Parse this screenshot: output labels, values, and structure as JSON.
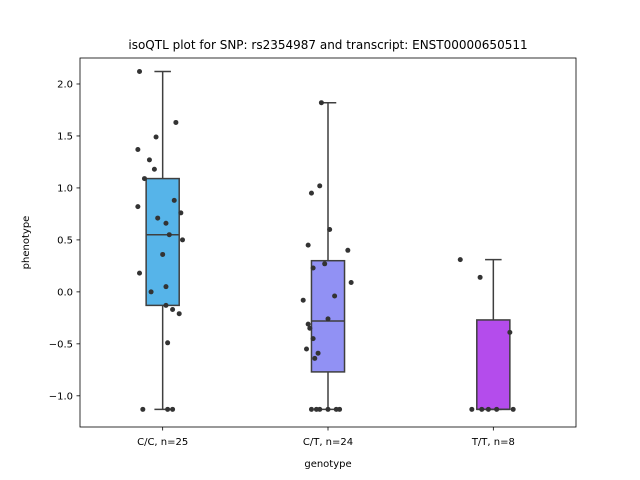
{
  "chart_data": {
    "type": "box",
    "title": "isoQTL plot for SNP: rs2354987 and transcript: ENST00000650511",
    "xlabel": "genotype",
    "ylabel": "phenotype",
    "ylim": [
      -1.3,
      2.25
    ],
    "yticks": [
      -1.0,
      -0.5,
      0.0,
      0.5,
      1.0,
      1.5,
      2.0
    ],
    "ytick_labels": [
      "−1.0",
      "−0.5",
      "0.0",
      "0.5",
      "1.0",
      "1.5",
      "2.0"
    ],
    "grid": false,
    "categories": [
      "C/C, n=25",
      "C/T, n=24",
      "T/T, n=8"
    ],
    "colors": [
      "#56b4e9",
      "#9191f4",
      "#b44cec"
    ],
    "boxes": [
      {
        "whisker_low": -1.13,
        "q1": -0.13,
        "median": 0.55,
        "q3": 1.09,
        "whisker_high": 2.12
      },
      {
        "whisker_low": -1.13,
        "q1": -0.77,
        "median": -0.28,
        "q3": 0.3,
        "whisker_high": 1.82
      },
      {
        "whisker_low": -1.13,
        "q1": -1.13,
        "median": -1.13,
        "q3": -0.27,
        "whisker_high": 0.31
      }
    ],
    "points": [
      [
        2.12,
        1.63,
        1.49,
        1.37,
        1.27,
        1.18,
        1.09,
        0.88,
        0.82,
        0.76,
        0.71,
        0.66,
        0.55,
        0.5,
        0.36,
        0.18,
        0.05,
        0.0,
        -0.13,
        -0.17,
        -0.21,
        -0.49,
        -1.13,
        -1.13,
        -1.13
      ],
      [
        1.82,
        1.02,
        0.95,
        0.6,
        0.45,
        0.4,
        0.27,
        0.23,
        0.09,
        -0.04,
        -0.08,
        -0.26,
        -0.31,
        -0.35,
        -0.45,
        -0.55,
        -0.59,
        -0.64,
        -1.13,
        -1.13,
        -1.13,
        -1.13,
        -1.13,
        -1.13
      ],
      [
        0.31,
        0.14,
        -0.39,
        -1.13,
        -1.13,
        -1.13,
        -1.13,
        -1.13
      ]
    ],
    "jitter": [
      [
        -0.14,
        0.08,
        -0.04,
        -0.15,
        -0.08,
        -0.05,
        -0.11,
        0.07,
        -0.15,
        0.11,
        -0.03,
        0.02,
        0.04,
        0.12,
        0.0,
        -0.14,
        0.02,
        -0.07,
        0.02,
        0.06,
        0.1,
        0.03,
        0.03,
        0.06,
        -0.12
      ],
      [
        -0.04,
        -0.05,
        -0.1,
        0.01,
        -0.12,
        0.12,
        -0.02,
        -0.09,
        0.14,
        0.04,
        -0.15,
        0.0,
        -0.12,
        -0.11,
        -0.09,
        -0.13,
        -0.06,
        -0.08,
        -0.1,
        -0.07,
        -0.05,
        0.0,
        0.05,
        0.07
      ],
      [
        -0.2,
        -0.08,
        0.1,
        -0.13,
        -0.07,
        -0.03,
        0.02,
        0.12
      ]
    ]
  }
}
